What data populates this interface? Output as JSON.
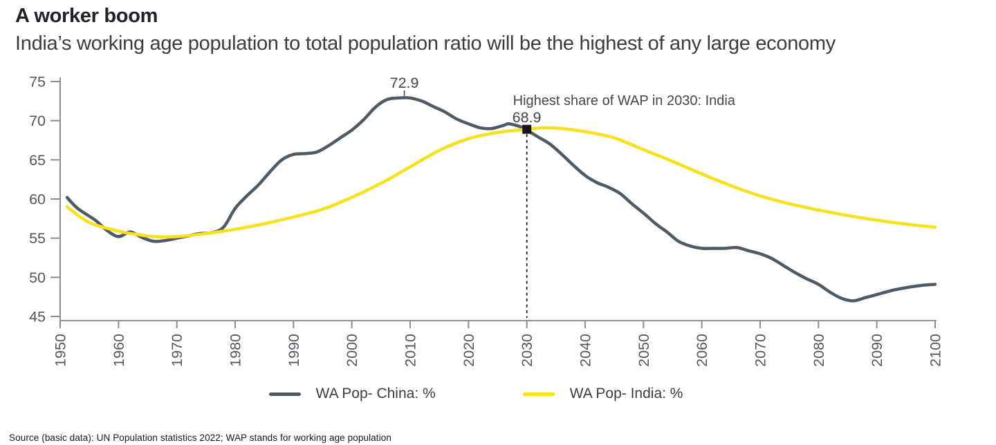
{
  "header": {
    "title": "A worker boom",
    "subtitle": "India’s working age population to total population ratio will be the highest of any large economy"
  },
  "chart_data": {
    "type": "line",
    "xlim": [
      1950,
      2100
    ],
    "ylim": [
      45,
      75
    ],
    "x_ticks": [
      1950,
      1960,
      1970,
      1980,
      1990,
      2000,
      2010,
      2020,
      2030,
      2040,
      2050,
      2060,
      2070,
      2080,
      2090,
      2100
    ],
    "y_ticks": [
      45,
      50,
      55,
      60,
      65,
      70,
      75
    ],
    "grid": false,
    "x_tick_label_rotation": -90,
    "legend_position": "bottom-center",
    "series": [
      {
        "name": "WA Pop- China: %",
        "color": "#4e5a64",
        "points": [
          [
            1950,
            60.2
          ],
          [
            1953,
            58.8
          ],
          [
            1956,
            57.3
          ],
          [
            1958,
            56.0
          ],
          [
            1960,
            55.2
          ],
          [
            1962,
            55.8
          ],
          [
            1964,
            55.1
          ],
          [
            1966,
            54.6
          ],
          [
            1968,
            54.7
          ],
          [
            1970,
            55.0
          ],
          [
            1972,
            55.3
          ],
          [
            1974,
            55.6
          ],
          [
            1976,
            55.7
          ],
          [
            1978,
            56.4
          ],
          [
            1980,
            58.8
          ],
          [
            1982,
            60.4
          ],
          [
            1984,
            61.8
          ],
          [
            1986,
            63.5
          ],
          [
            1988,
            65.0
          ],
          [
            1990,
            65.7
          ],
          [
            1992,
            65.8
          ],
          [
            1994,
            66.0
          ],
          [
            1996,
            66.8
          ],
          [
            1998,
            67.8
          ],
          [
            2000,
            68.8
          ],
          [
            2002,
            70.1
          ],
          [
            2004,
            71.7
          ],
          [
            2006,
            72.7
          ],
          [
            2008,
            72.9
          ],
          [
            2010,
            72.9
          ],
          [
            2012,
            72.5
          ],
          [
            2014,
            71.8
          ],
          [
            2016,
            71.1
          ],
          [
            2018,
            70.2
          ],
          [
            2020,
            69.6
          ],
          [
            2022,
            69.1
          ],
          [
            2024,
            69.0
          ],
          [
            2026,
            69.4
          ],
          [
            2027,
            69.6
          ],
          [
            2029,
            69.2
          ],
          [
            2030,
            68.8
          ],
          [
            2032,
            67.9
          ],
          [
            2034,
            67.0
          ],
          [
            2036,
            65.7
          ],
          [
            2038,
            64.3
          ],
          [
            2040,
            63.0
          ],
          [
            2042,
            62.1
          ],
          [
            2044,
            61.5
          ],
          [
            2046,
            60.7
          ],
          [
            2048,
            59.4
          ],
          [
            2050,
            58.2
          ],
          [
            2052,
            56.9
          ],
          [
            2054,
            55.8
          ],
          [
            2056,
            54.6
          ],
          [
            2058,
            54.0
          ],
          [
            2060,
            53.7
          ],
          [
            2062,
            53.7
          ],
          [
            2064,
            53.7
          ],
          [
            2066,
            53.8
          ],
          [
            2068,
            53.4
          ],
          [
            2070,
            53.0
          ],
          [
            2072,
            52.4
          ],
          [
            2074,
            51.5
          ],
          [
            2076,
            50.6
          ],
          [
            2078,
            49.8
          ],
          [
            2080,
            49.1
          ],
          [
            2082,
            48.1
          ],
          [
            2084,
            47.3
          ],
          [
            2086,
            47.0
          ],
          [
            2088,
            47.4
          ],
          [
            2090,
            47.8
          ],
          [
            2093,
            48.4
          ],
          [
            2096,
            48.8
          ],
          [
            2098,
            49.0
          ],
          [
            2100,
            49.1
          ]
        ]
      },
      {
        "name": "WA Pop- India: %",
        "color": "#f6e11c",
        "points": [
          [
            1950,
            59.0
          ],
          [
            1955,
            57.0
          ],
          [
            1960,
            55.9
          ],
          [
            1963,
            55.5
          ],
          [
            1966,
            55.2
          ],
          [
            1970,
            55.2
          ],
          [
            1974,
            55.5
          ],
          [
            1978,
            55.9
          ],
          [
            1982,
            56.4
          ],
          [
            1986,
            57.0
          ],
          [
            1990,
            57.7
          ],
          [
            1995,
            58.7
          ],
          [
            2000,
            60.2
          ],
          [
            2005,
            62.0
          ],
          [
            2010,
            64.1
          ],
          [
            2015,
            66.2
          ],
          [
            2020,
            67.7
          ],
          [
            2025,
            68.5
          ],
          [
            2030,
            68.9
          ],
          [
            2033,
            69.1
          ],
          [
            2036,
            69.0
          ],
          [
            2040,
            68.6
          ],
          [
            2045,
            67.8
          ],
          [
            2050,
            66.3
          ],
          [
            2055,
            64.8
          ],
          [
            2060,
            63.2
          ],
          [
            2065,
            61.7
          ],
          [
            2070,
            60.4
          ],
          [
            2075,
            59.4
          ],
          [
            2080,
            58.6
          ],
          [
            2085,
            57.9
          ],
          [
            2090,
            57.3
          ],
          [
            2095,
            56.8
          ],
          [
            2100,
            56.4
          ]
        ]
      }
    ],
    "annotations": {
      "china_peak": {
        "label": "72.9",
        "year": 2009,
        "value": 72.9
      },
      "india_2030": {
        "title": "Highest share of WAP in 2030: India",
        "value_label": "68.9",
        "year": 2030,
        "value": 68.9,
        "marker": "black-square",
        "guide": "dashed-vertical-line"
      }
    }
  },
  "legend": {
    "items": [
      {
        "label": "WA Pop- China: %",
        "color": "#4e5a64"
      },
      {
        "label": "WA Pop- India: %",
        "color": "#f6e11c"
      }
    ]
  },
  "source": "Source (basic data): UN Population statistics 2022; WAP stands for working age population",
  "colors": {
    "background": "#ffffff",
    "axis": "#8b8b90",
    "tick_label": "#55555e",
    "title": "#21212b",
    "subtitle": "#3b3b44",
    "annotation": "#45454d",
    "marker": "#17171b"
  }
}
